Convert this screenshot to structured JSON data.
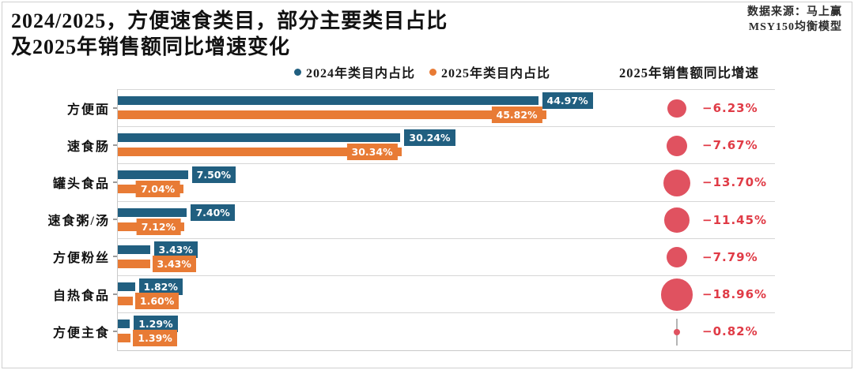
{
  "title": {
    "line1": "2024/2025，方便速食类目，部分主要类目占比",
    "line2": "及2025年销售额同比增速变化"
  },
  "source": {
    "line1": "数据来源：马上赢",
    "line2": "MSY150均衡模型"
  },
  "legend": {
    "items": [
      {
        "label": "2024年类目内占比",
        "color": "#215F80"
      },
      {
        "label": "2025年类目内占比",
        "color": "#E87B35"
      }
    ]
  },
  "growth_header": "2025年销售额同比增速",
  "colors": {
    "bar_2024": "#215F80",
    "bar_2025": "#E87B35",
    "bubble": "#E05260",
    "growth_text": "#E03B46",
    "grid": "#d6d6d6"
  },
  "chart_data": {
    "type": "bar",
    "orientation": "horizontal",
    "title": "2024/2025，方便速食类目，部分主要类目占比及2025年销售额同比增速变化",
    "categories": [
      "方便面",
      "速食肠",
      "罐头食品",
      "速食粥/汤",
      "方便粉丝",
      "自热食品",
      "方便主食"
    ],
    "series": [
      {
        "name": "2024年类目内占比",
        "color": "#215F80",
        "values": [
          44.97,
          30.24,
          7.5,
          7.4,
          3.43,
          1.82,
          1.29
        ]
      },
      {
        "name": "2025年类目内占比",
        "color": "#E87B35",
        "values": [
          45.82,
          30.34,
          7.04,
          7.12,
          3.43,
          1.6,
          1.39
        ]
      }
    ],
    "bubble_series": {
      "name": "2025年销售额同比增速",
      "color": "#E05260",
      "values": [
        -6.23,
        -7.67,
        -13.7,
        -11.45,
        -7.79,
        -18.96,
        -0.82
      ],
      "size_encoding": "area proportional to absolute value"
    },
    "value_unit": "%",
    "xlim": [
      0,
      70
    ],
    "grid": "horizontal row separators only",
    "legend_position": "top-center",
    "x_axis_ticks_visible": false
  }
}
